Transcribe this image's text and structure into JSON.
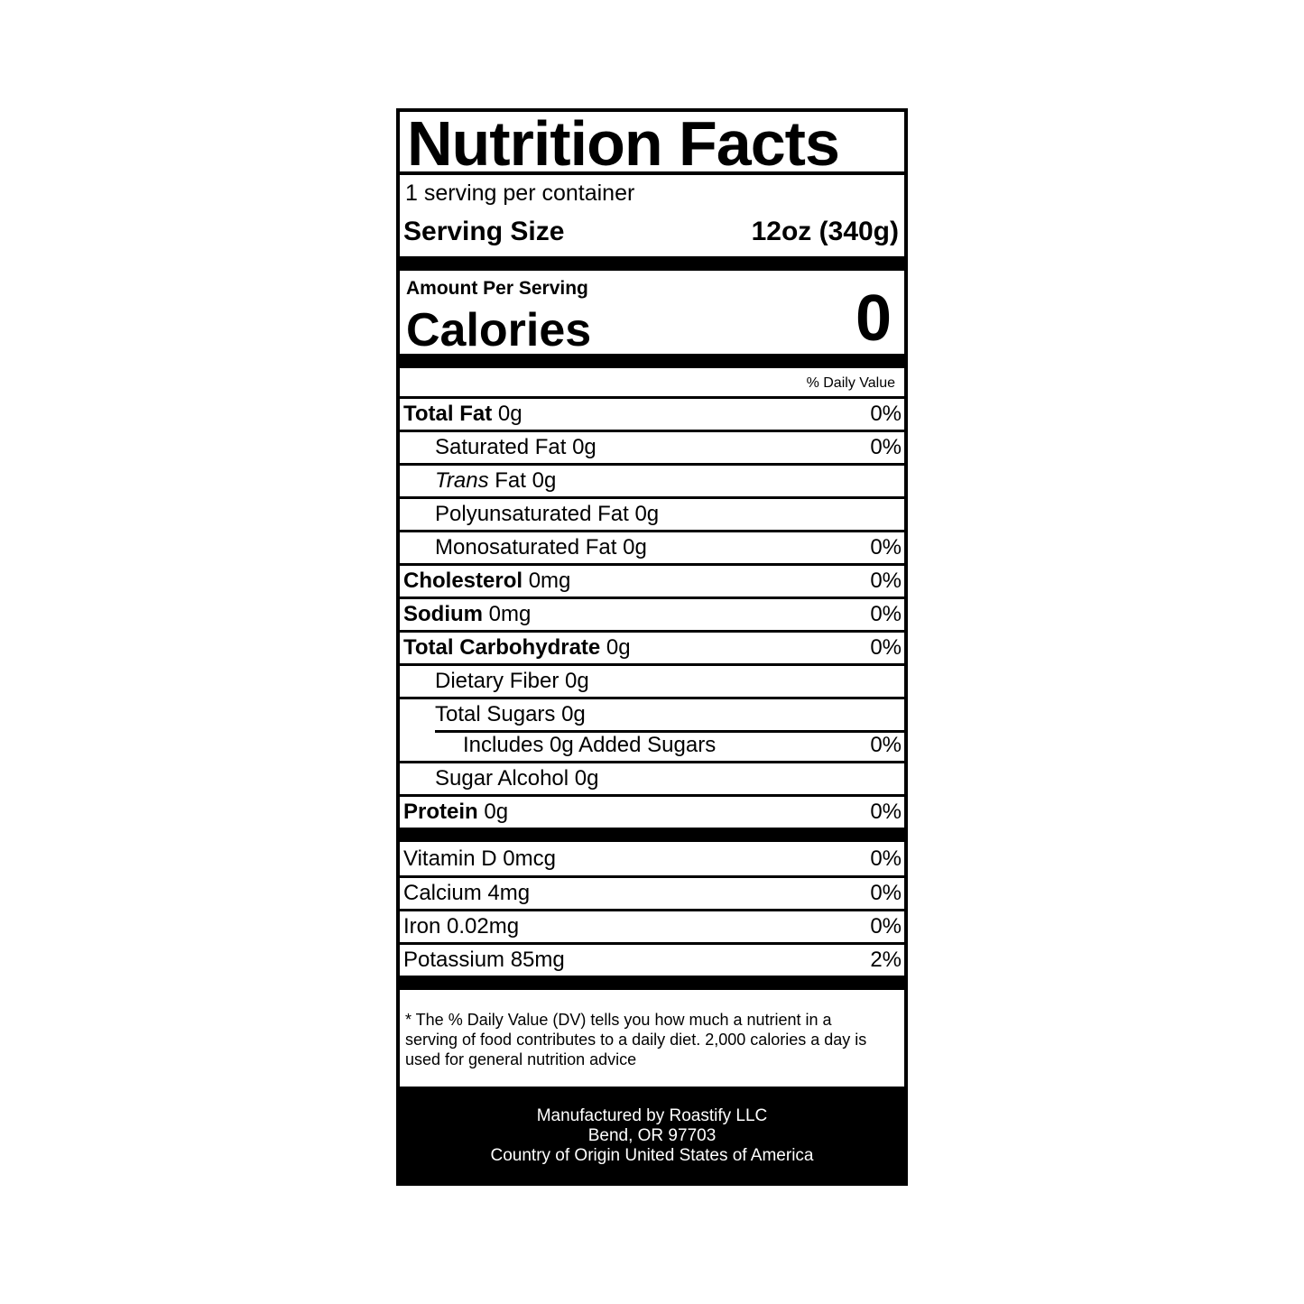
{
  "title": "Nutrition Facts",
  "servings_per_container": "1 serving per container",
  "serving_size": {
    "label": "Serving Size",
    "value": "12oz (340g)"
  },
  "amount_per_serving": "Amount Per Serving",
  "calories": {
    "label": "Calories",
    "value": "0"
  },
  "daily_value_header": "% Daily Value",
  "nutrients": [
    {
      "label": "Total Fat",
      "amount": "0g",
      "dv": "0%"
    },
    {
      "label": "Saturated Fat 0g",
      "dv": "0%"
    },
    {
      "label_italic": "Trans",
      "label": " Fat 0g",
      "dv": ""
    },
    {
      "label": "Polyunsaturated Fat 0g",
      "dv": ""
    },
    {
      "label": "Monosaturated Fat 0g",
      "dv": "0%"
    },
    {
      "label": "Cholesterol",
      "amount": "0mg",
      "dv": "0%"
    },
    {
      "label": "Sodium",
      "amount": "0mg",
      "dv": "0%"
    },
    {
      "label": "Total Carbohydrate",
      "amount": "0g",
      "dv": "0%"
    },
    {
      "label": "Dietary Fiber 0g",
      "dv": ""
    },
    {
      "label": "Total Sugars 0g",
      "dv": ""
    },
    {
      "label": "Includes 0g Added Sugars",
      "dv": "0%"
    },
    {
      "label": "Sugar Alcohol 0g",
      "dv": ""
    },
    {
      "label": "Protein",
      "amount": "0g",
      "dv": "0%"
    }
  ],
  "vitamins": [
    {
      "label": "Vitamin D 0mcg",
      "dv": "0%"
    },
    {
      "label": "Calcium 4mg",
      "dv": "0%"
    },
    {
      "label": "Iron 0.02mg",
      "dv": "0%"
    },
    {
      "label": "Potassium 85mg",
      "dv": "2%"
    }
  ],
  "footnote": "* The % Daily Value (DV) tells you how much a nutrient in a serving of food contributes to a daily diet. 2,000 calories a day is used for general nutrition advice",
  "manufacturer": {
    "line1": "Manufactured by Roastify LLC",
    "line2": "Bend, OR 97703",
    "line3": "Country of Origin United States of America"
  }
}
